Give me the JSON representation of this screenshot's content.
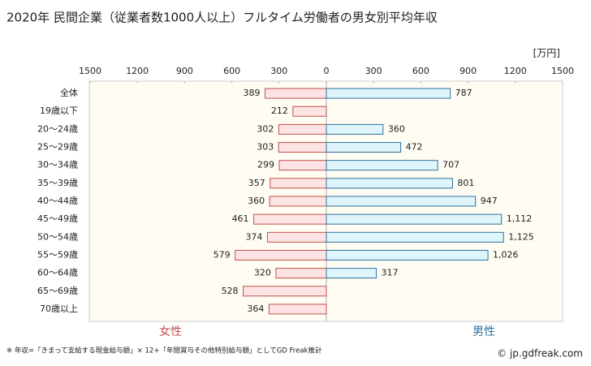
{
  "chart_data": {
    "type": "butterfly",
    "title": "2020年 民間企業（従業者数1000人以上）フルタイム労働者の男女別平均年収",
    "unit": "[万円]",
    "categories": [
      "全体",
      "19歳以下",
      "20～24歳",
      "25～29歳",
      "30～34歳",
      "35～39歳",
      "40～44歳",
      "45～49歳",
      "50～54歳",
      "55～59歳",
      "60～64歳",
      "65～69歳",
      "70歳以上"
    ],
    "series": [
      {
        "name": "女性",
        "color": "#fde3e3",
        "edge": "#c0504d",
        "side": "left",
        "values": [
          389,
          212,
          302,
          303,
          299,
          357,
          360,
          461,
          374,
          579,
          320,
          528,
          364
        ]
      },
      {
        "name": "男性",
        "color": "#def6fb",
        "edge": "#2e6fa0",
        "side": "right",
        "values": [
          787,
          null,
          360,
          472,
          707,
          801,
          947,
          1112,
          1125,
          1026,
          317,
          null,
          null
        ],
        "value_labels": [
          "787",
          null,
          "360",
          "472",
          "707",
          "801",
          "947",
          "1,112",
          "1,125",
          "1,026",
          "317",
          null,
          null
        ]
      }
    ],
    "xlim": [
      0,
      1500
    ],
    "xticks": [
      0,
      300,
      600,
      900,
      1200,
      1500
    ],
    "footnote": "※ 年収=「きまって支給する現金給与額」× 12+「年間賞与その他特別給与額」としてGD Freak推計",
    "source": "© jp.gdfreak.com"
  }
}
